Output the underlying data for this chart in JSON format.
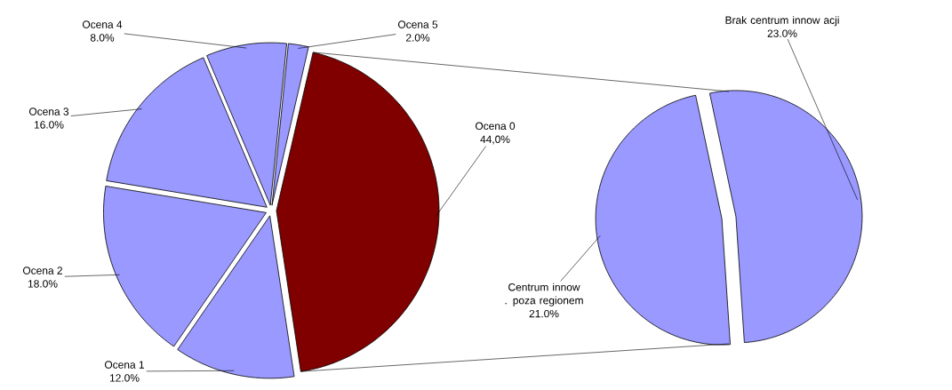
{
  "chart_data": [
    {
      "type": "pie",
      "categories": [
        "Ocena 0",
        "Ocena 1",
        "Ocena 2",
        "Ocena 3",
        "Ocena 4",
        "Ocena 5"
      ],
      "values": [
        44,
        12,
        18,
        16,
        8,
        2
      ],
      "value_labels": [
        "44,0%",
        "12.0%",
        "18.0%",
        "16.0%",
        "8.0%",
        "2.0%"
      ],
      "colors": [
        "#800000",
        "#9999ff",
        "#9999ff",
        "#9999ff",
        "#9999ff",
        "#9999ff"
      ]
    },
    {
      "type": "pie",
      "categories": [
        "Brak centrum innow acji",
        "Centrum innow . poza regionem"
      ],
      "values": [
        23,
        21
      ],
      "value_labels": [
        "23.0%",
        "21.0%"
      ],
      "colors": [
        "#9999ff",
        "#9999ff"
      ]
    }
  ]
}
